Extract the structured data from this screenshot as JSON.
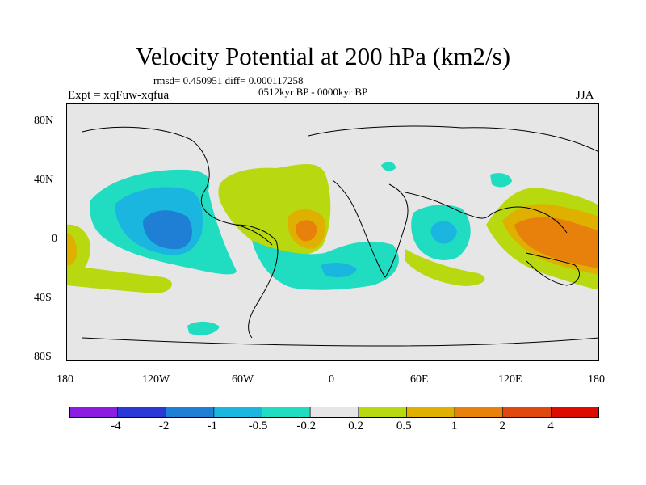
{
  "title": "Velocity Potential at 200 hPa (km2/s)",
  "stats_line": "rmsd= 0.450951 diff= 0.000117258",
  "period": "0512kyr BP - 0000kyr BP",
  "experiment": "Expt = xqFuw-xqfua",
  "season": "JJA",
  "map": {
    "lat_ticks": [
      "80N",
      "40N",
      "0",
      "40S",
      "80S"
    ],
    "lon_ticks": [
      "180",
      "120W",
      "60W",
      "0",
      "60E",
      "120E",
      "180"
    ],
    "anomaly_regions": [
      {
        "name": "east-pacific-negative",
        "level": "-0.5"
      },
      {
        "name": "east-pacific-core",
        "level": "-1"
      },
      {
        "name": "atlantic-positive",
        "level": "0.5"
      },
      {
        "name": "west-africa-core",
        "level": "1"
      },
      {
        "name": "west-pacific-positive",
        "level": "1"
      },
      {
        "name": "maritime-continent-core",
        "level": "2"
      },
      {
        "name": "indian-ocean-negative",
        "level": "-0.5"
      }
    ]
  },
  "colorbar": {
    "labels": [
      "-4",
      "-2",
      "-1",
      "-0.5",
      "-0.2",
      "0.2",
      "0.5",
      "1",
      "2",
      "4"
    ],
    "colors": [
      "#8c1ce0",
      "#2a38d8",
      "#1f7fd4",
      "#1ab6e0",
      "#20dcc0",
      "#e6e6e6",
      "#b8d810",
      "#e0b000",
      "#e8800c",
      "#e04810",
      "#dc0c00"
    ]
  }
}
